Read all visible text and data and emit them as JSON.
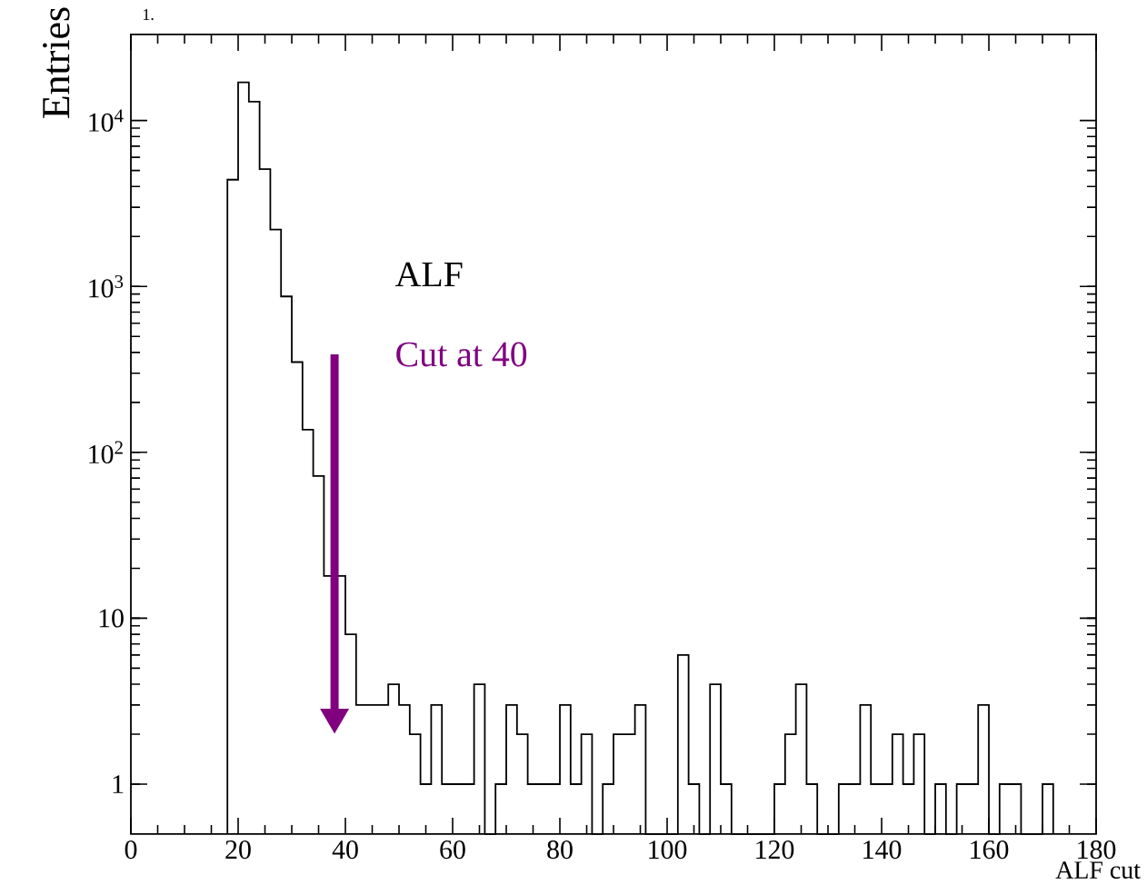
{
  "chart_data": {
    "type": "histogram",
    "ylabel": "Entries",
    "xlabel": "ALF cut",
    "bins": [
      18,
      20,
      22,
      24,
      26,
      28,
      30,
      32,
      34,
      36,
      38,
      40,
      42,
      44,
      46,
      48,
      50,
      52,
      54,
      56,
      58,
      60,
      62,
      64,
      66,
      68,
      70,
      72,
      74,
      76,
      78,
      80,
      82,
      84,
      86,
      88,
      90,
      92,
      94,
      96,
      98,
      100,
      102,
      104,
      106,
      108,
      110,
      112,
      114,
      116,
      118,
      120,
      122,
      124,
      126,
      128,
      130,
      132,
      134,
      136,
      138,
      140,
      142,
      144,
      146,
      148,
      150,
      152,
      154,
      156,
      158,
      160,
      162,
      164,
      166,
      168,
      170,
      172
    ],
    "values": [
      4400,
      17000,
      13000,
      5100,
      2200,
      870,
      350,
      137,
      72,
      18,
      18,
      8,
      3,
      3,
      3,
      4,
      3,
      2,
      1,
      3,
      1,
      1,
      1,
      4,
      null,
      1,
      3,
      2,
      1,
      1,
      1,
      3,
      1,
      2,
      null,
      1,
      2,
      2,
      3,
      null,
      null,
      null,
      6,
      1,
      null,
      4,
      1,
      null,
      null,
      null,
      null,
      1,
      2,
      4,
      1,
      null,
      null,
      1,
      1,
      3,
      1,
      1,
      2,
      1,
      2,
      null,
      1,
      null,
      1,
      1,
      3,
      null,
      1,
      1,
      null,
      null,
      1
    ],
    "color": "#000000",
    "log": "y",
    "xlim": [
      0,
      180
    ],
    "ylim": [
      0.5,
      33000
    ],
    "xticks": [
      0,
      20,
      40,
      60,
      80,
      100,
      120,
      140,
      160,
      180
    ],
    "yticks": [
      1,
      10,
      {
        "value": 100,
        "label": "10$^{2}$"
      },
      {
        "value": 1000,
        "label": "10$^{3}$"
      },
      {
        "value": 10000,
        "label": "10$^{4}$"
      }
    ],
    "annotations": [
      "1.",
      "ALF",
      "Cut at 40"
    ]
  }
}
